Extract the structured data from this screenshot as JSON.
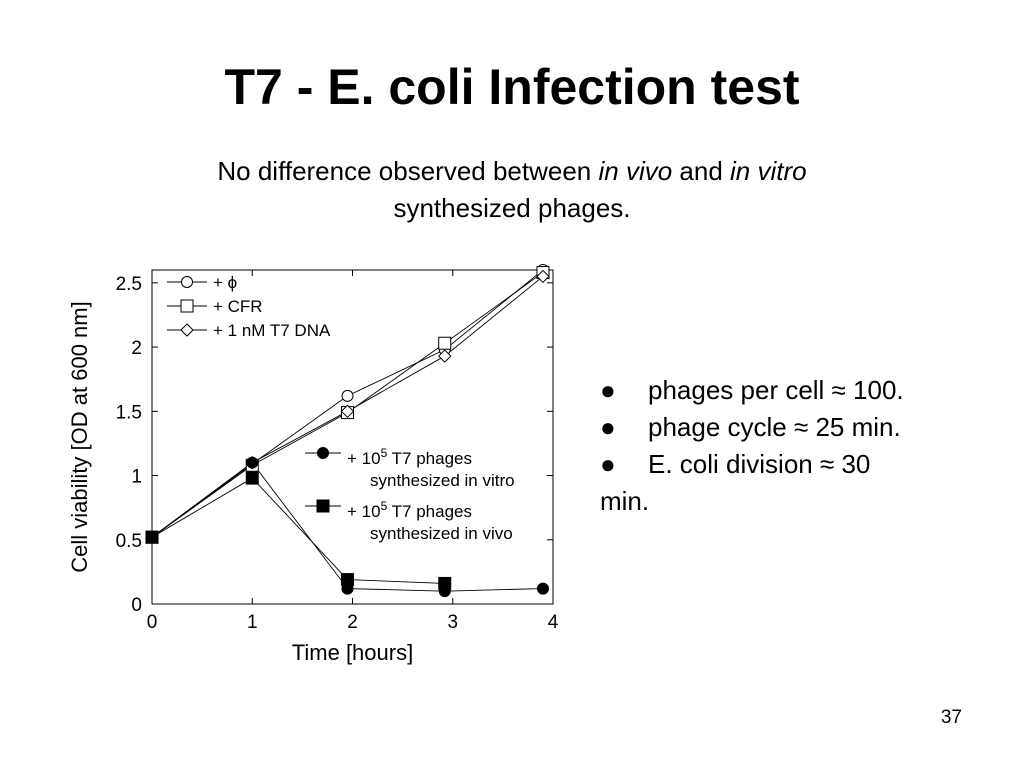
{
  "slide": {
    "title": "T7 - E. coli Infection test",
    "subtitle": {
      "part1": "No difference observed between ",
      "italic1": "in vivo",
      "part2": " and ",
      "italic2": "in vitro",
      "line2": "synthesized phages."
    },
    "bullets": [
      {
        "marker": "●",
        "text": "phages per cell ≈ 100."
      },
      {
        "marker": "●",
        "text": "phage cycle ≈ 25 min."
      },
      {
        "marker": "●",
        "text": "E. coli division ≈ 30"
      }
    ],
    "bullet_wrap": "min.",
    "page_number": "37"
  },
  "chart_data": {
    "type": "line",
    "xlabel": "Time [hours]",
    "ylabel": "Cell viability [OD at 600 nm]",
    "xlim": [
      0,
      4
    ],
    "ylim": [
      0,
      2.6
    ],
    "x_ticks": [
      "0",
      "1",
      "2",
      "3",
      "4"
    ],
    "y_ticks": [
      "0",
      "0.5",
      "1",
      "1.5",
      "2",
      "2.5"
    ],
    "grid": false,
    "series": [
      {
        "name": "+ ϕ",
        "marker": "open-circle",
        "points": [
          [
            0,
            0.52
          ],
          [
            1,
            1.09
          ],
          [
            1.95,
            1.62
          ],
          [
            2.92,
            1.98
          ],
          [
            3.9,
            2.6
          ]
        ]
      },
      {
        "name": "+ CFR",
        "marker": "open-square",
        "points": [
          [
            0,
            0.52
          ],
          [
            1,
            1.08
          ],
          [
            1.95,
            1.49
          ],
          [
            2.92,
            2.03
          ],
          [
            3.9,
            2.58
          ]
        ]
      },
      {
        "name": "+ 1 nM T7 DNA",
        "marker": "open-diamond",
        "points": [
          [
            0,
            0.52
          ],
          [
            1,
            1.1
          ],
          [
            1.95,
            1.5
          ],
          [
            2.92,
            1.93
          ],
          [
            3.9,
            2.55
          ]
        ]
      },
      {
        "name_line1": "+ 10",
        "name_sup": "5",
        "name_line1_rest": " T7 phages",
        "name_line2": "synthesized in vitro",
        "marker": "filled-circle",
        "points": [
          [
            0,
            0.52
          ],
          [
            1,
            1.1
          ],
          [
            1.95,
            0.12
          ],
          [
            2.92,
            0.1
          ],
          [
            3.9,
            0.12
          ]
        ]
      },
      {
        "name_line1": "+ 10",
        "name_sup": "5",
        "name_line1_rest": " T7 phages",
        "name_line2": "synthesized in vivo",
        "marker": "filled-square",
        "points": [
          [
            0,
            0.52
          ],
          [
            1,
            0.98
          ],
          [
            1.95,
            0.19
          ],
          [
            2.92,
            0.16
          ]
        ]
      }
    ]
  }
}
